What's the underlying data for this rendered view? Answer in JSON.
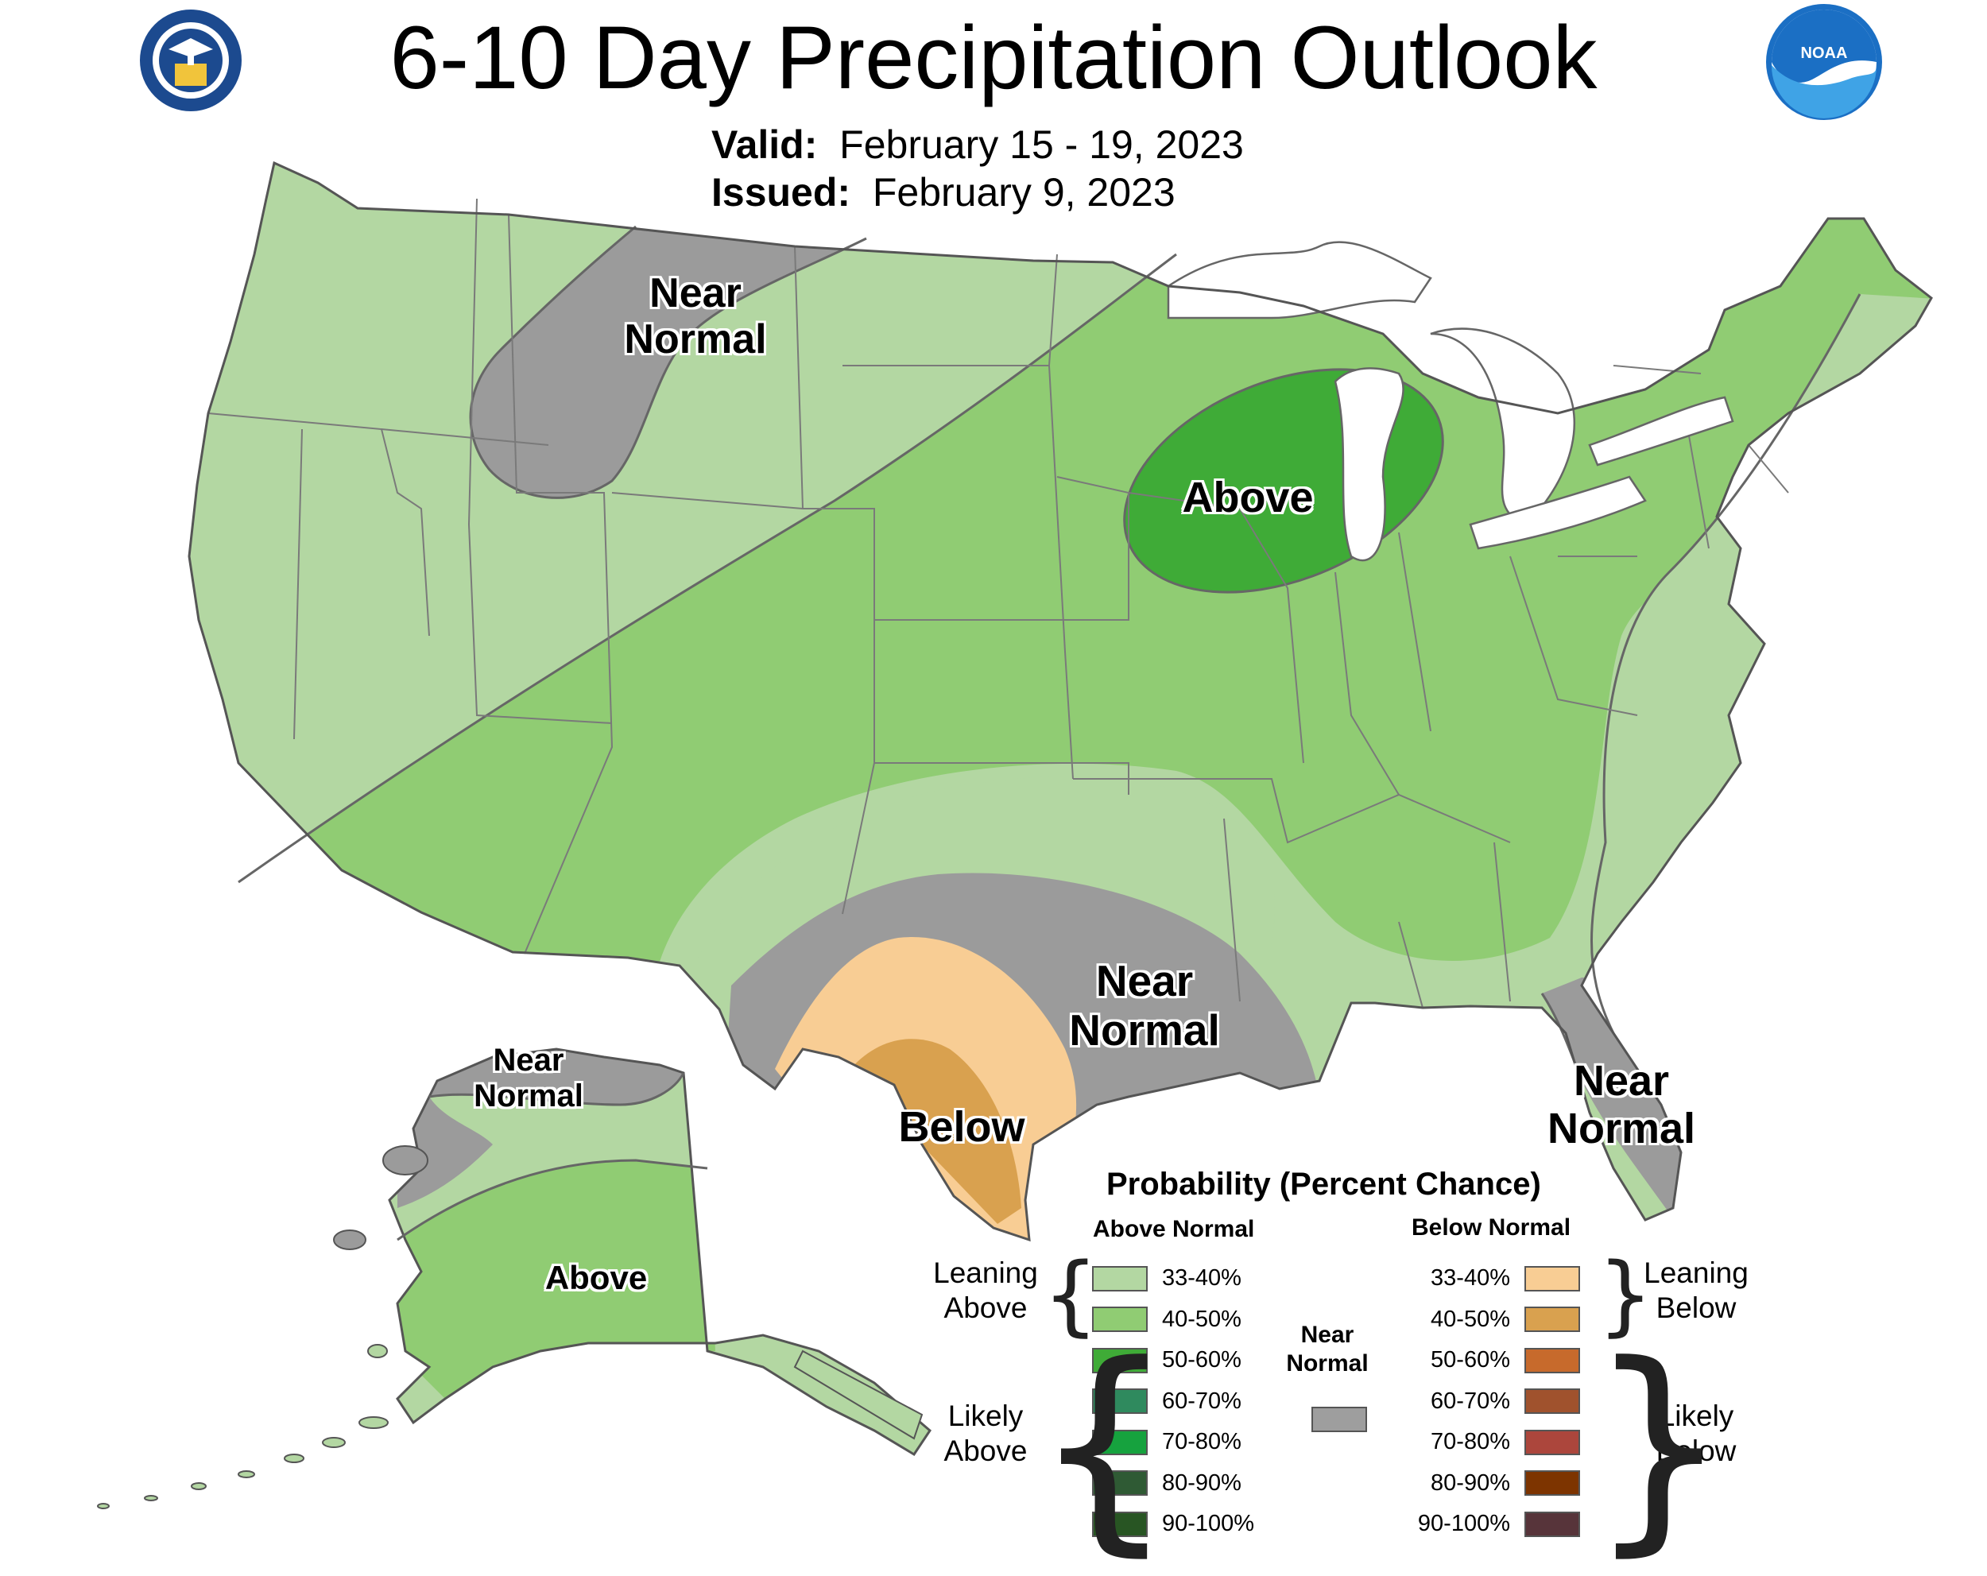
{
  "header": {
    "title": "6-10 Day Precipitation Outlook",
    "valid_label": "Valid:",
    "valid_value": "February 15 - 19, 2023",
    "issued_label": "Issued:",
    "issued_value": "February 9, 2023"
  },
  "logos": {
    "doc_seal": "department-of-commerce-seal",
    "doc_seal_text": "DEPARTMENT OF COMMERCE · UNITED STATES OF AMERICA",
    "noaa_logo": "noaa-logo",
    "noaa_text": "NOAA"
  },
  "map_labels": {
    "nw_near_normal": "Near\nNormal",
    "midwest_above": "Above",
    "texas_near_normal": "Near\nNormal",
    "texas_below": "Below",
    "florida_near_normal": "Near\nNormal",
    "alaska_near_normal": "Near\nNormal",
    "alaska_above": "Above"
  },
  "legend": {
    "title": "Probability (Percent Chance)",
    "above_header": "Above Normal",
    "below_header": "Below Normal",
    "near_header": "Near\nNormal",
    "leaning_above": "Leaning\nAbove",
    "likely_above": "Likely\nAbove",
    "leaning_below": "Leaning\nBelow",
    "likely_below": "Likely\nBelow",
    "above_rows": [
      {
        "label": "33-40%",
        "color": "#b3d7a2"
      },
      {
        "label": "40-50%",
        "color": "#90cc73"
      },
      {
        "label": "50-60%",
        "color": "#3fab37"
      },
      {
        "label": "60-70%",
        "color": "#2f8a5e"
      },
      {
        "label": "70-80%",
        "color": "#16a23e"
      },
      {
        "label": "80-90%",
        "color": "#2f5a34"
      },
      {
        "label": "90-100%",
        "color": "#285523"
      }
    ],
    "below_rows": [
      {
        "label": "33-40%",
        "color": "#f8cd94"
      },
      {
        "label": "40-50%",
        "color": "#d9a14f"
      },
      {
        "label": "50-60%",
        "color": "#c76a2c"
      },
      {
        "label": "60-70%",
        "color": "#a0522d"
      },
      {
        "label": "70-80%",
        "color": "#ac463c"
      },
      {
        "label": "80-90%",
        "color": "#7d3400"
      },
      {
        "label": "90-100%",
        "color": "#57343a"
      }
    ],
    "near_color": "#9e9e9e"
  },
  "colors": {
    "leaning_above": "#b3d7a2",
    "above_40_50": "#90cc73",
    "above_50_60": "#3fab37",
    "near_normal": "#9b9b9b",
    "below_33_40": "#f8cd94",
    "below_40_50": "#d9a14f",
    "water": "#ffffff",
    "borders": "#6f6f6f"
  }
}
